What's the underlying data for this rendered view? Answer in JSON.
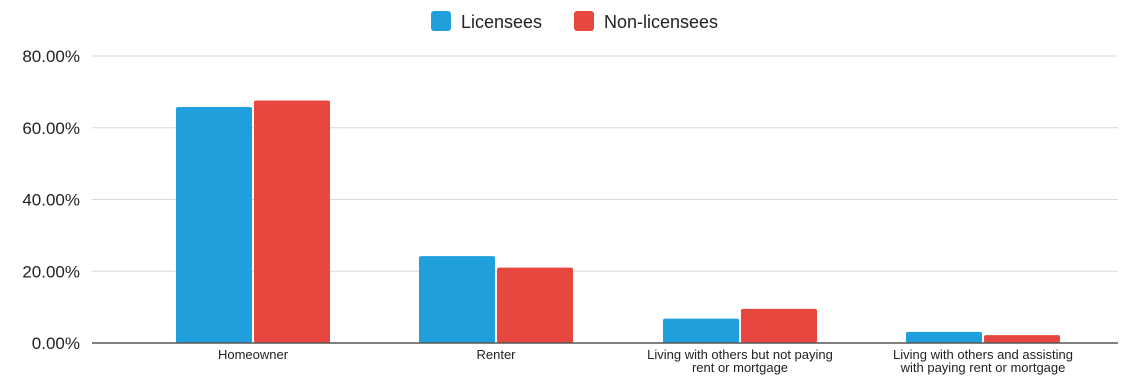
{
  "chart_data": {
    "type": "bar",
    "categories": [
      [
        "Homeowner"
      ],
      [
        "Renter"
      ],
      [
        "Living with others but not paying",
        "rent or mortgage"
      ],
      [
        "Living with others and assisting",
        "with paying rent or mortgage"
      ]
    ],
    "series": [
      {
        "name": "Licensees",
        "color": "#1fa0dd",
        "values": [
          65.8,
          24.2,
          6.8,
          3.1
        ]
      },
      {
        "name": "Non-licensees",
        "color": "#e8473f",
        "values": [
          67.6,
          21.0,
          9.5,
          2.2
        ]
      }
    ],
    "y_ticks": [
      "0.00%",
      "20.00%",
      "40.00%",
      "60.00%",
      "80.00%"
    ],
    "ylim": [
      0,
      80
    ],
    "grid": true,
    "legend_position": "top-center"
  }
}
